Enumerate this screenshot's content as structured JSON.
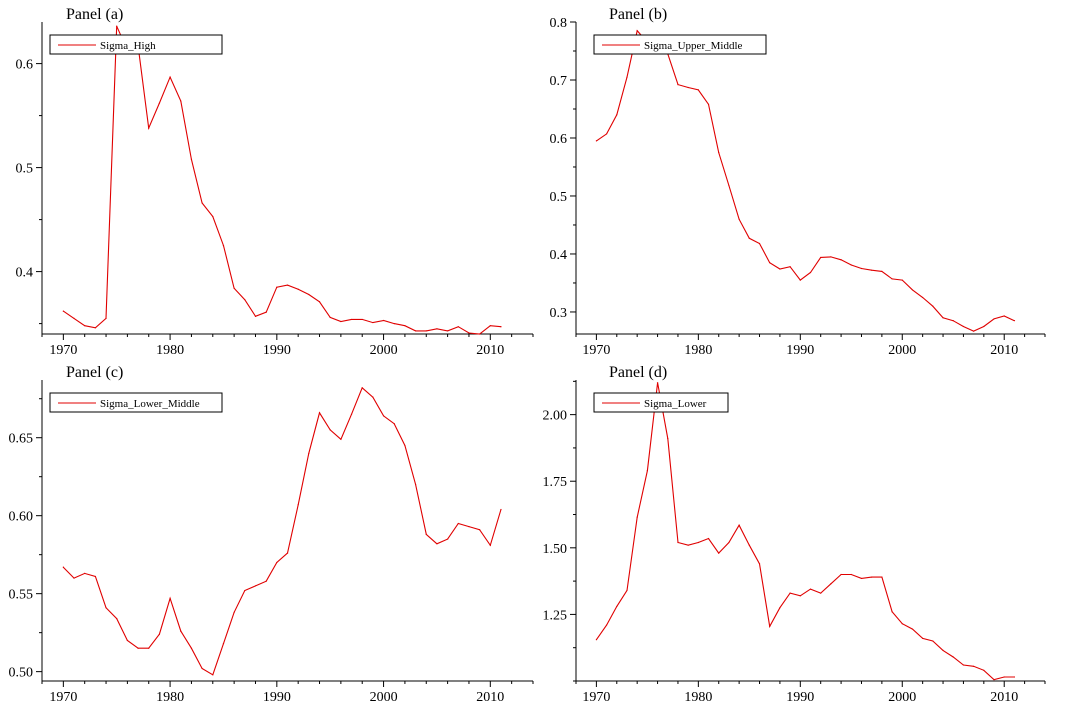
{
  "chart_data": [
    {
      "type": "line",
      "title": "Panel (a)",
      "xlim": [
        1968,
        2014
      ],
      "ylim": [
        0.34,
        0.64
      ],
      "xticks": [
        1970,
        1980,
        1990,
        2000,
        2010
      ],
      "yticks": [
        0.4,
        0.5,
        0.6
      ],
      "ytick_labels": [
        "0.4",
        "0.5",
        "0.6"
      ],
      "legend_position": "top-left",
      "series": [
        {
          "name": "Sigma_High",
          "x": [
            1970,
            1971,
            1972,
            1973,
            1974,
            1975,
            1976,
            1977,
            1978,
            1979,
            1980,
            1981,
            1982,
            1983,
            1984,
            1985,
            1986,
            1987,
            1988,
            1989,
            1990,
            1991,
            1992,
            1993,
            1994,
            1995,
            1996,
            1997,
            1998,
            1999,
            2000,
            2001,
            2002,
            2003,
            2004,
            2005,
            2006,
            2007,
            2008,
            2009,
            2010,
            2011
          ],
          "y": [
            0.362,
            0.355,
            0.348,
            0.346,
            0.355,
            0.636,
            0.613,
            0.617,
            0.538,
            0.562,
            0.587,
            0.564,
            0.508,
            0.466,
            0.453,
            0.425,
            0.384,
            0.373,
            0.357,
            0.361,
            0.385,
            0.387,
            0.383,
            0.378,
            0.371,
            0.356,
            0.352,
            0.354,
            0.354,
            0.351,
            0.353,
            0.35,
            0.348,
            0.343,
            0.343,
            0.345,
            0.343,
            0.347,
            0.341,
            0.34,
            0.348,
            0.347
          ]
        }
      ]
    },
    {
      "type": "line",
      "title": "Panel (b)",
      "xlim": [
        1968,
        2014
      ],
      "ylim": [
        0.262,
        0.8
      ],
      "xticks": [
        1970,
        1980,
        1990,
        2000,
        2010
      ],
      "yticks": [
        0.3,
        0.4,
        0.5,
        0.6,
        0.7,
        0.8
      ],
      "ytick_labels": [
        "0.3",
        "0.4",
        "0.5",
        "0.6",
        "0.7",
        "0.8"
      ],
      "legend_position": "top-left",
      "series": [
        {
          "name": "Sigma_Upper_Middle",
          "x": [
            1970,
            1971,
            1972,
            1973,
            1974,
            1975,
            1976,
            1977,
            1978,
            1979,
            1980,
            1981,
            1982,
            1983,
            1984,
            1985,
            1986,
            1987,
            1988,
            1989,
            1990,
            1991,
            1992,
            1993,
            1994,
            1995,
            1996,
            1997,
            1998,
            1999,
            2000,
            2001,
            2002,
            2003,
            2004,
            2005,
            2006,
            2007,
            2008,
            2009,
            2010,
            2011
          ],
          "y": [
            0.595,
            0.607,
            0.64,
            0.705,
            0.785,
            0.765,
            0.76,
            0.745,
            0.692,
            0.687,
            0.683,
            0.658,
            0.575,
            0.518,
            0.46,
            0.427,
            0.418,
            0.385,
            0.374,
            0.378,
            0.355,
            0.368,
            0.394,
            0.395,
            0.39,
            0.381,
            0.375,
            0.372,
            0.37,
            0.357,
            0.355,
            0.338,
            0.325,
            0.31,
            0.29,
            0.285,
            0.275,
            0.267,
            0.275,
            0.288,
            0.293,
            0.285
          ]
        }
      ]
    },
    {
      "type": "line",
      "title": "Panel (c)",
      "xlim": [
        1968,
        2014
      ],
      "ylim": [
        0.494,
        0.687
      ],
      "xticks": [
        1970,
        1980,
        1990,
        2000,
        2010
      ],
      "yticks": [
        0.5,
        0.55,
        0.6,
        0.65
      ],
      "ytick_labels": [
        "0.50",
        "0.55",
        "0.60",
        "0.65"
      ],
      "legend_position": "top-left",
      "series": [
        {
          "name": "Sigma_Lower_Middle",
          "x": [
            1970,
            1971,
            1972,
            1973,
            1974,
            1975,
            1976,
            1977,
            1978,
            1979,
            1980,
            1981,
            1982,
            1983,
            1984,
            1985,
            1986,
            1987,
            1988,
            1989,
            1990,
            1991,
            1992,
            1993,
            1994,
            1995,
            1996,
            1997,
            1998,
            1999,
            2000,
            2001,
            2002,
            2003,
            2004,
            2005,
            2006,
            2007,
            2008,
            2009,
            2010,
            2011
          ],
          "y": [
            0.567,
            0.56,
            0.563,
            0.561,
            0.541,
            0.534,
            0.52,
            0.515,
            0.515,
            0.524,
            0.547,
            0.526,
            0.515,
            0.502,
            0.498,
            0.518,
            0.538,
            0.552,
            0.555,
            0.558,
            0.57,
            0.576,
            0.607,
            0.64,
            0.666,
            0.655,
            0.649,
            0.665,
            0.682,
            0.676,
            0.664,
            0.659,
            0.645,
            0.62,
            0.588,
            0.582,
            0.585,
            0.595,
            0.593,
            0.591,
            0.581,
            0.604
          ]
        }
      ]
    },
    {
      "type": "line",
      "title": "Panel (d)",
      "xlim": [
        1968,
        2014
      ],
      "ylim": [
        1.0,
        2.13
      ],
      "xticks": [
        1970,
        1980,
        1990,
        2000,
        2010
      ],
      "yticks": [
        1.25,
        1.5,
        1.75,
        2.0
      ],
      "ytick_labels": [
        "1.25",
        "1.50",
        "1.75",
        "2.00"
      ],
      "legend_position": "top-left",
      "series": [
        {
          "name": "Sigma_Lower",
          "x": [
            1970,
            1971,
            1972,
            1973,
            1974,
            1975,
            1976,
            1977,
            1978,
            1979,
            1980,
            1981,
            1982,
            1983,
            1984,
            1985,
            1986,
            1987,
            1988,
            1989,
            1990,
            1991,
            1992,
            1993,
            1994,
            1995,
            1996,
            1997,
            1998,
            1999,
            2000,
            2001,
            2002,
            2003,
            2004,
            2005,
            2006,
            2007,
            2008,
            2009,
            2010,
            2011
          ],
          "y": [
            1.155,
            1.21,
            1.28,
            1.34,
            1.615,
            1.79,
            2.12,
            1.91,
            1.52,
            1.51,
            1.52,
            1.535,
            1.48,
            1.52,
            1.585,
            1.51,
            1.44,
            1.205,
            1.275,
            1.33,
            1.32,
            1.345,
            1.33,
            1.365,
            1.4,
            1.4,
            1.385,
            1.39,
            1.39,
            1.26,
            1.215,
            1.195,
            1.16,
            1.15,
            1.115,
            1.09,
            1.06,
            1.055,
            1.04,
            1.005,
            1.015,
            1.015
          ]
        }
      ]
    }
  ],
  "colors": {
    "series": "#e00000",
    "axis": "#000000",
    "background": "#ffffff"
  }
}
